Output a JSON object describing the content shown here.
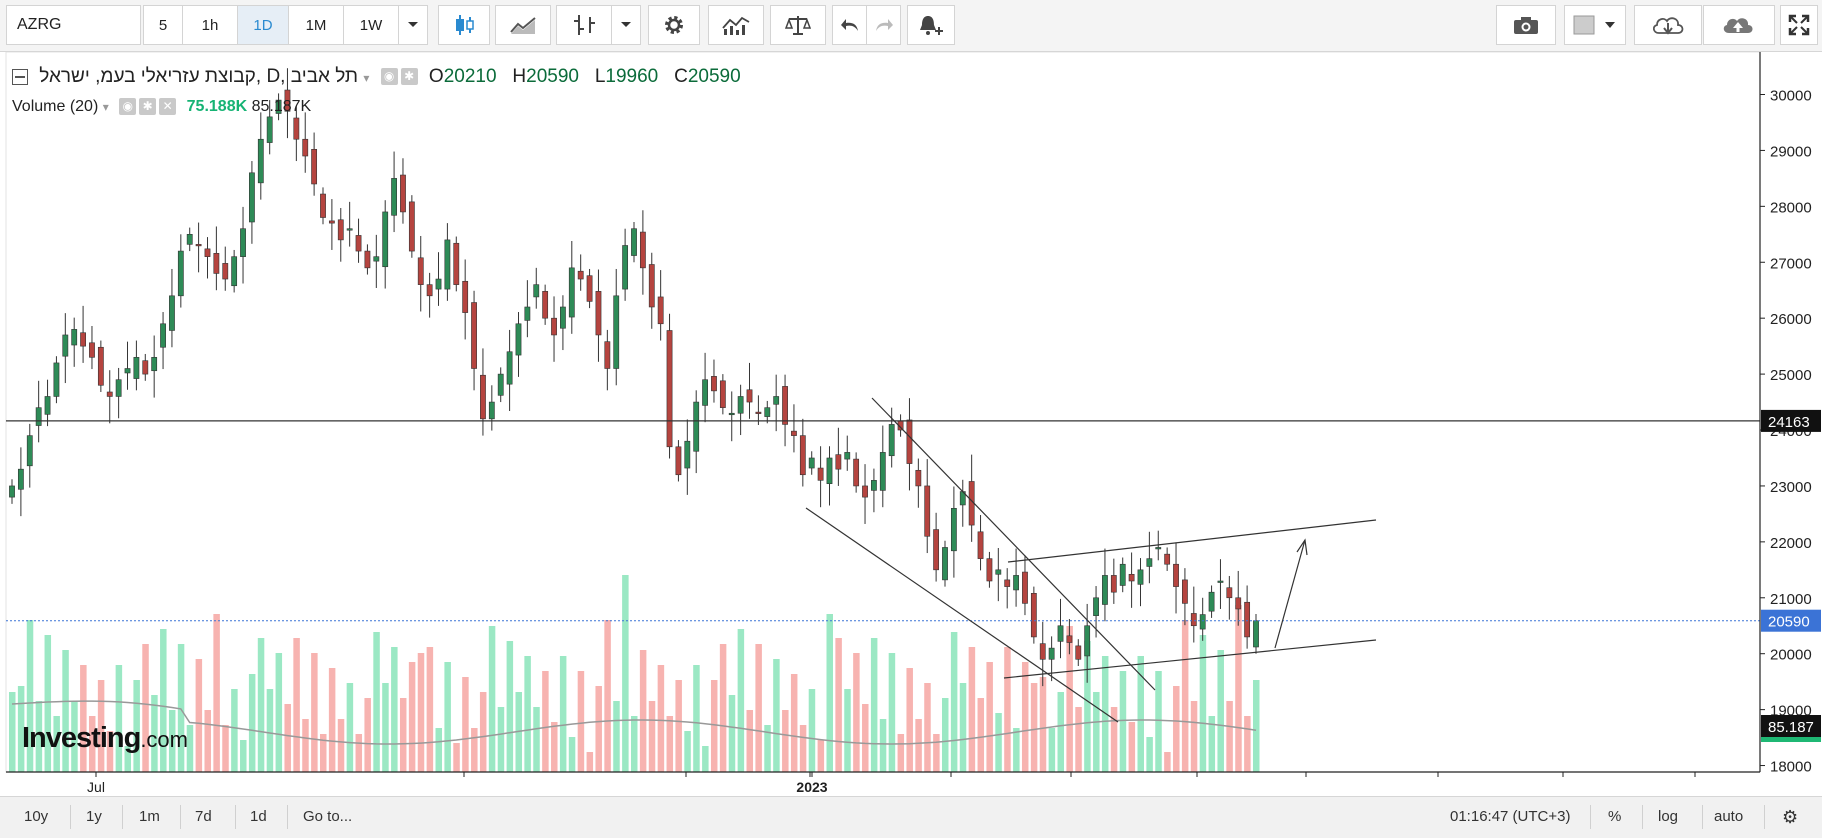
{
  "toolbar": {
    "symbol": "AZRG",
    "intervals": [
      "5",
      "1h",
      "1D",
      "1M",
      "1W"
    ],
    "active_interval": "1D"
  },
  "legend": {
    "title": "קבוצת עזריאלי בעמ, ישראל, D, תל אביב",
    "ohlc": {
      "o_label": "O",
      "o": "20210",
      "h_label": "H",
      "h": "20590",
      "l_label": "L",
      "l": "19960",
      "c_label": "C",
      "c": "20590"
    },
    "volume_label": "Volume (20)",
    "volume_value": "75.188K",
    "volume_ma_value": "85.187K"
  },
  "bottom_bar": {
    "ranges": [
      "10y",
      "1y",
      "1m",
      "7d",
      "1d"
    ],
    "goto": "Go to...",
    "clock": "01:16:47 (UTC+3)",
    "percent": "%",
    "log": "log",
    "auto": "auto"
  },
  "logo": {
    "brand": "Investing",
    "suffix": ".com"
  },
  "colors": {
    "up": "#2e8b57",
    "down": "#b5443f",
    "vol_up": "#9be8c4",
    "vol_down": "#f7b3b0",
    "price_line": "#3b73d6",
    "label_bg": "#111111"
  },
  "chart_data": {
    "type": "candlestick",
    "y_axis": {
      "ticks": [
        18000,
        19000,
        20000,
        21000,
        22000,
        23000,
        24000,
        25000,
        26000,
        27000,
        28000,
        29000,
        30000
      ],
      "range": [
        17880,
        30600
      ]
    },
    "x_axis": {
      "tick_labels": [
        "Jul",
        "2023"
      ]
    },
    "price_labels": [
      {
        "value": 24163,
        "text": "24163",
        "style": "dark"
      },
      {
        "value": 20590,
        "text": "20590",
        "style": "blue"
      },
      {
        "value": 85187,
        "text": "85.187",
        "style": "dark",
        "panel": "volume"
      }
    ],
    "horizontal_line": 24163,
    "last_close": 20590,
    "closes": [
      23000,
      23300,
      23900,
      24400,
      24600,
      25200,
      25700,
      25800,
      25500,
      25300,
      24800,
      24600,
      24900,
      25100,
      25300,
      25000,
      25300,
      25900,
      26400,
      27200,
      27500,
      27300,
      27100,
      26800,
      26700,
      27100,
      27600,
      28600,
      29200,
      29600,
      29900,
      29700,
      29200,
      28900,
      28400,
      27800,
      27700,
      27400,
      27600,
      27200,
      26900,
      27100,
      27900,
      28500,
      27900,
      27200,
      26600,
      26400,
      26700,
      27400,
      26600,
      26100,
      25100,
      24200,
      24500,
      25000,
      25400,
      25900,
      26200,
      26600,
      26000,
      25700,
      26200,
      26900,
      26700,
      26300,
      25700,
      25100,
      26400,
      27300,
      27600,
      26900,
      26200,
      25900,
      23700,
      23200,
      23800,
      24500,
      24900,
      24700,
      24400,
      24300,
      24600,
      24500,
      24300,
      24400,
      24600,
      24100,
      23900,
      23200,
      23500,
      23100,
      23500,
      23300,
      23600,
      23000,
      22800,
      23100,
      23600,
      24100,
      24000,
      23400,
      23000,
      22100,
      21500,
      21900,
      22600,
      22900,
      22300,
      21700,
      21300,
      21500,
      21200,
      21400,
      20900,
      20300,
      19900,
      20100,
      20500,
      20200,
      19900,
      20500,
      21000,
      21400,
      21100,
      21600,
      21300,
      21500,
      21700,
      21900,
      21600,
      21200,
      20900,
      20500,
      20700,
      21100,
      21300,
      21000,
      20800,
      20300,
      20590
    ],
    "volume_ma_approx": [
      88000,
      87500,
      87000,
      86800,
      86500,
      86300,
      86000,
      85800,
      85500,
      85187
    ]
  }
}
